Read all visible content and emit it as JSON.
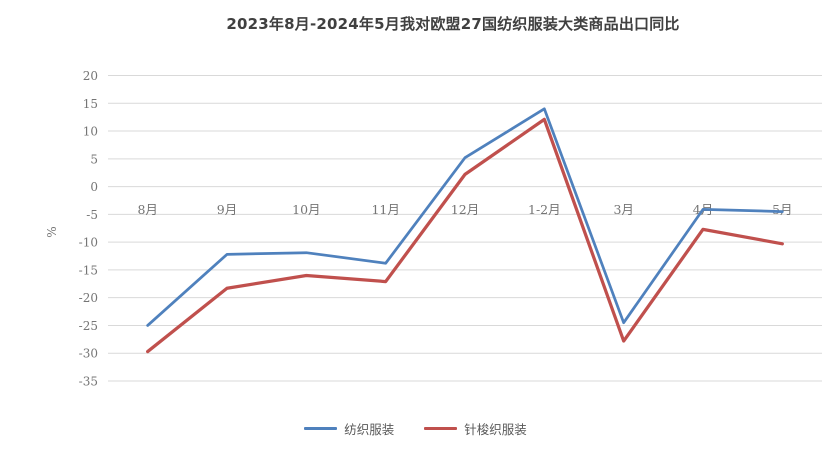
{
  "chart_data": {
    "type": "line",
    "title": "2023年8月-2024年5月我对欧盟27国纺织服装大类商品出口同比",
    "xlabel": "",
    "ylabel": "%",
    "categories": [
      "8月",
      "9月",
      "10月",
      "11月",
      "12月",
      "1-2月",
      "3月",
      "4月",
      "5月"
    ],
    "series": [
      {
        "name": "纺织服装",
        "color": "#4F81BD",
        "values": [
          -25.0,
          -12.2,
          -11.9,
          -13.8,
          5.2,
          14.0,
          -24.5,
          -4.1,
          -4.5
        ]
      },
      {
        "name": "针梭织服装",
        "color": "#C0504D",
        "values": [
          -29.7,
          -18.3,
          -16.0,
          -17.1,
          2.2,
          12.1,
          -27.8,
          -7.7,
          -10.3
        ]
      }
    ],
    "ylim": [
      -35,
      20
    ],
    "yticks": [
      20,
      15,
      10,
      5,
      0,
      -5,
      -10,
      -15,
      -20,
      -25,
      -30,
      -35
    ],
    "grid": true,
    "legend_position": "bottom"
  },
  "colors": {
    "gridline": "#D9D9D9",
    "axis_text": "#757575",
    "title_text": "#404040",
    "background": "#FFFFFF"
  }
}
